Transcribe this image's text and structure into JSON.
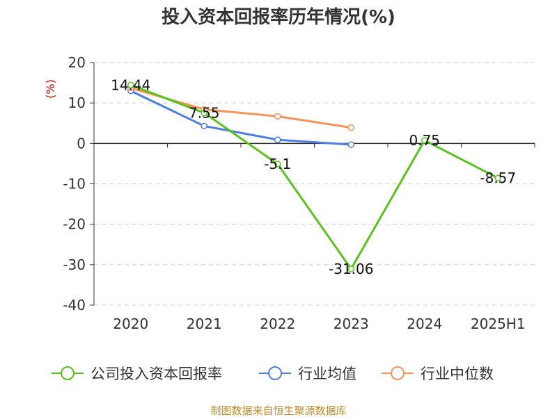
{
  "chart_data": {
    "type": "line",
    "title": "投入资本回报率历年情况(%)",
    "unit_label": "(%)",
    "categories": [
      "2020",
      "2021",
      "2022",
      "2023",
      "2024",
      "2025H1"
    ],
    "yticks": [
      "20",
      "10",
      "0",
      "-10",
      "-20",
      "-30",
      "-40"
    ],
    "ylim": [
      -40,
      20
    ],
    "grid": true,
    "legend_position": "bottom",
    "series": [
      {
        "name": "公司投入资本回报率",
        "color": "#5ac21e",
        "values": [
          14.44,
          7.55,
          -5.1,
          -31.06,
          0.75,
          -8.57
        ],
        "labels": [
          "14.44",
          "7.55",
          "-5.1",
          "-31.06",
          "0.75",
          "-8.57"
        ]
      },
      {
        "name": "行业均值",
        "color": "#4e7fde",
        "values": [
          13.0,
          4.3,
          0.9,
          -0.3,
          null,
          null
        ]
      },
      {
        "name": "行业中位数",
        "color": "#f5935a",
        "values": [
          13.7,
          8.4,
          6.7,
          3.9,
          null,
          null
        ]
      }
    ],
    "source": "制图数据来自恒生聚源数据库"
  }
}
